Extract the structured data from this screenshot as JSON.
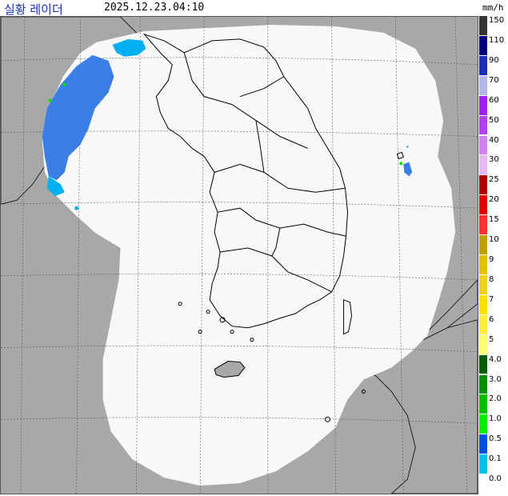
{
  "header": {
    "title": "실황 레이더",
    "timestamp": "2025.12.23.04:10",
    "unit": "mm/h"
  },
  "colors": {
    "land": "#a8a8a8",
    "radar_coverage": "#f8f8f8",
    "border": "#000000",
    "grid": "#555555"
  },
  "legend": [
    {
      "label": "150",
      "color": "#333333"
    },
    {
      "label": "110",
      "color": "#000080"
    },
    {
      "label": "90",
      "color": "#1a2fb8"
    },
    {
      "label": "70",
      "color": "#b0b8e8"
    },
    {
      "label": "60",
      "color": "#a020f0"
    },
    {
      "label": "50",
      "color": "#b040f0"
    },
    {
      "label": "40",
      "color": "#d080f0"
    },
    {
      "label": "30",
      "color": "#e8b8f0"
    },
    {
      "label": "25",
      "color": "#b00000"
    },
    {
      "label": "20",
      "color": "#e00000"
    },
    {
      "label": "15",
      "color": "#ff3030"
    },
    {
      "label": "10",
      "color": "#c0a000"
    },
    {
      "label": "9",
      "color": "#e0c000"
    },
    {
      "label": "8",
      "color": "#f0d020"
    },
    {
      "label": "7",
      "color": "#ffe000"
    },
    {
      "label": "6",
      "color": "#ffee40"
    },
    {
      "label": "5",
      "color": "#ffff70"
    },
    {
      "label": "4.0",
      "color": "#006000"
    },
    {
      "label": "3.0",
      "color": "#009000"
    },
    {
      "label": "2.0",
      "color": "#00c000"
    },
    {
      "label": "1.0",
      "color": "#00f000"
    },
    {
      "label": "0.5",
      "color": "#0050e0"
    },
    {
      "label": "0.1",
      "color": "#00c0f0"
    },
    {
      "label": "0.0",
      "color": "#ffffff"
    }
  ]
}
